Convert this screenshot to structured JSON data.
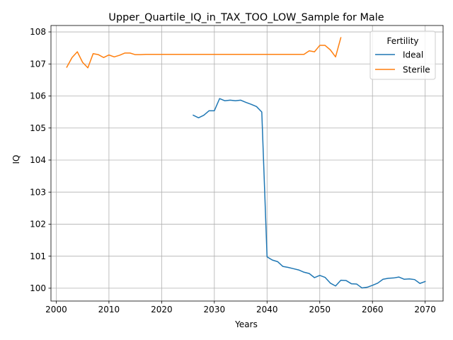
{
  "chart_data": {
    "type": "line",
    "title": "Upper_Quartile_IQ_in_TAX_TOO_LOW_Sample for Male",
    "xlabel": "Years",
    "ylabel": "IQ",
    "xlim": [
      1999,
      2073.4
    ],
    "ylim": [
      99.6,
      108.2
    ],
    "xticks": [
      2000,
      2010,
      2020,
      2030,
      2040,
      2050,
      2060,
      2070
    ],
    "yticks": [
      100,
      101,
      102,
      103,
      104,
      105,
      106,
      107,
      108
    ],
    "grid": true,
    "legend": {
      "title": "Fertility",
      "position": "top-right"
    },
    "series": [
      {
        "name": "Ideal",
        "color": "#1f77b4",
        "x": [
          2026,
          2027,
          2028,
          2029,
          2030,
          2031,
          2032,
          2033,
          2034,
          2035,
          2036,
          2037,
          2038,
          2039,
          2040,
          2041,
          2042,
          2043,
          2044,
          2045,
          2046,
          2047,
          2048,
          2049,
          2050,
          2051,
          2052,
          2053,
          2054,
          2055,
          2056,
          2057,
          2058,
          2059,
          2060,
          2061,
          2062,
          2063,
          2064,
          2065,
          2066,
          2067,
          2068,
          2069,
          2070
        ],
        "values": [
          105.4,
          105.32,
          105.4,
          105.54,
          105.54,
          105.92,
          105.85,
          105.87,
          105.85,
          105.87,
          105.8,
          105.74,
          105.67,
          105.5,
          100.98,
          100.88,
          100.83,
          100.68,
          100.65,
          100.61,
          100.57,
          100.5,
          100.46,
          100.33,
          100.4,
          100.34,
          100.16,
          100.07,
          100.25,
          100.24,
          100.14,
          100.13,
          100.01,
          100.03,
          100.09,
          100.16,
          100.28,
          100.31,
          100.32,
          100.35,
          100.28,
          100.29,
          100.27,
          100.15,
          100.21
        ]
      },
      {
        "name": "Sterile",
        "color": "#ff7f0e",
        "x": [
          2002,
          2003,
          2004,
          2005,
          2006,
          2007,
          2008,
          2009,
          2010,
          2011,
          2012,
          2013,
          2014,
          2015,
          2016,
          2017,
          2018,
          2019,
          2020,
          2021,
          2022,
          2023,
          2024,
          2025,
          2026,
          2027,
          2028,
          2029,
          2030,
          2031,
          2032,
          2033,
          2034,
          2035,
          2036,
          2037,
          2038,
          2039,
          2040,
          2041,
          2042,
          2043,
          2044,
          2045,
          2046,
          2047,
          2048,
          2049,
          2050,
          2051,
          2052,
          2053,
          2054
        ],
        "values": [
          106.9,
          107.2,
          107.38,
          107.05,
          106.88,
          107.32,
          107.29,
          107.2,
          107.28,
          107.22,
          107.27,
          107.34,
          107.34,
          107.29,
          107.29,
          107.3,
          107.3,
          107.3,
          107.3,
          107.3,
          107.3,
          107.3,
          107.3,
          107.3,
          107.3,
          107.3,
          107.3,
          107.3,
          107.3,
          107.3,
          107.3,
          107.3,
          107.3,
          107.3,
          107.3,
          107.3,
          107.3,
          107.3,
          107.3,
          107.3,
          107.3,
          107.3,
          107.3,
          107.3,
          107.3,
          107.3,
          107.41,
          107.38,
          107.58,
          107.58,
          107.44,
          107.22,
          107.82
        ]
      }
    ]
  }
}
